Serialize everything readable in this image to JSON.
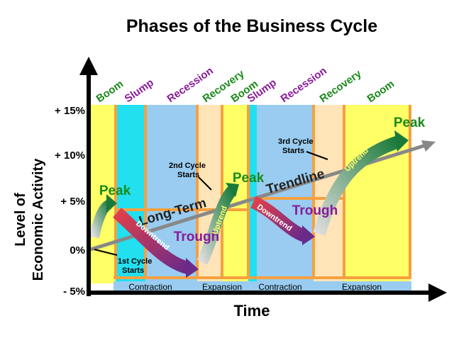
{
  "header": {
    "title": "Phases of the Business Cycle"
  },
  "axes": {
    "y_label": [
      "Level of",
      "Economic Activity"
    ],
    "x_label": "Time",
    "y_ticks": [
      "+ 15%",
      "+ 10%",
      "+ 5%",
      "0%",
      "- 5%"
    ]
  },
  "phases": [
    "Boom",
    "Slump",
    "Recession",
    "Recovery",
    "Boom",
    "Slump",
    "Recession",
    "Recovery",
    "Boom"
  ],
  "spans": [
    "Contraction",
    "Expansion",
    "Contraction",
    "Expansion"
  ],
  "annotations": {
    "peaks": [
      "Peak",
      "Peak",
      "Peak"
    ],
    "troughs": [
      "Trough",
      "Trough"
    ],
    "trendline": [
      "Long-Term",
      "Trendline"
    ],
    "downtrends": [
      "Downtrend",
      "Downtrend"
    ],
    "uptrends": [
      "Uptrend",
      "Uptrend"
    ],
    "cycle_starts": [
      [
        "1st Cycle",
        "Starts"
      ],
      [
        "2nd Cycle",
        "Starts"
      ],
      [
        "3rd Cycle",
        "Starts"
      ]
    ]
  }
}
